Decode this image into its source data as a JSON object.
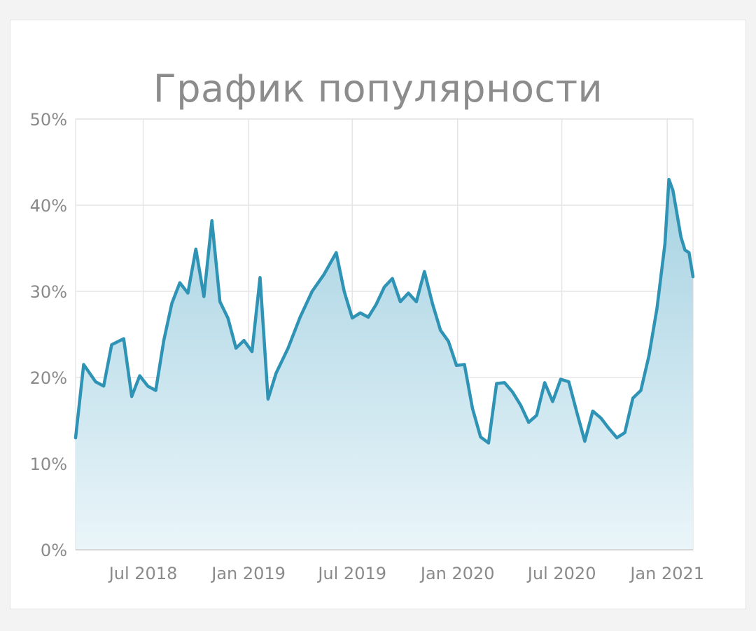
{
  "chart_data": {
    "type": "area",
    "title": "График популярности",
    "xlabel": "",
    "ylabel": "",
    "ylim": [
      0,
      50
    ],
    "xlim": [
      "2018-03-05",
      "2021-02-15"
    ],
    "x_ticks": [
      "Jul 2018",
      "Jan 2019",
      "Jul 2019",
      "Jan 2020",
      "Jul 2020",
      "Jan 2021"
    ],
    "y_ticks": [
      "0%",
      "10%",
      "20%",
      "30%",
      "40%",
      "50%"
    ],
    "grid": true,
    "legend": "none",
    "colors": {
      "line": "#2e93b4",
      "fill_top": "#a6d2e2",
      "fill_bottom": "#eaf5f9",
      "grid": "#e5e5e5",
      "axis": "#d6d6d6"
    },
    "series": [
      {
        "x": [
          "2018-03-05",
          "2018-03-19",
          "2018-04-09",
          "2018-04-23",
          "2018-05-07",
          "2018-05-28",
          "2018-06-11",
          "2018-06-25",
          "2018-07-09",
          "2018-07-23",
          "2018-08-06",
          "2018-08-20",
          "2018-09-03",
          "2018-09-17",
          "2018-10-01",
          "2018-10-15",
          "2018-10-29",
          "2018-11-12",
          "2018-11-26",
          "2018-12-10",
          "2018-12-24",
          "2019-01-07",
          "2019-01-21",
          "2019-02-04",
          "2019-02-18",
          "2019-03-11",
          "2019-04-01",
          "2019-04-22",
          "2019-05-13",
          "2019-06-03",
          "2019-06-17",
          "2019-07-01",
          "2019-07-15",
          "2019-07-29",
          "2019-08-12",
          "2019-08-26",
          "2019-09-09",
          "2019-09-23",
          "2019-10-07",
          "2019-10-21",
          "2019-11-04",
          "2019-11-18",
          "2019-12-02",
          "2019-12-16",
          "2019-12-30",
          "2020-01-13",
          "2020-01-27",
          "2020-02-10",
          "2020-02-24",
          "2020-03-09",
          "2020-03-23",
          "2020-04-06",
          "2020-04-20",
          "2020-05-04",
          "2020-05-18",
          "2020-06-01",
          "2020-06-15",
          "2020-06-29",
          "2020-07-13",
          "2020-07-27",
          "2020-08-10",
          "2020-08-24",
          "2020-09-07",
          "2020-09-21",
          "2020-10-05",
          "2020-10-19",
          "2020-11-02",
          "2020-11-16",
          "2020-11-30",
          "2020-12-14",
          "2020-12-28",
          "2021-01-04",
          "2021-01-11",
          "2021-01-25",
          "2021-02-01",
          "2021-02-08",
          "2021-02-15"
        ],
        "values": [
          13,
          21.5,
          19.5,
          19,
          23.8,
          24.5,
          17.8,
          20.2,
          19,
          18.5,
          24.3,
          28.6,
          31,
          29.8,
          34.9,
          29.4,
          38.2,
          28.8,
          26.9,
          23.4,
          24.3,
          23,
          31.6,
          17.5,
          20.5,
          23.4,
          27,
          30,
          32,
          34.5,
          30,
          26.9,
          27.5,
          27,
          28.5,
          30.5,
          31.5,
          28.8,
          29.8,
          28.8,
          32.3,
          28.6,
          25.5,
          24.2,
          21.4,
          21.5,
          16.4,
          13.1,
          12.4,
          19.3,
          19.4,
          18.3,
          16.8,
          14.8,
          15.6,
          19.4,
          17.2,
          19.8,
          19.5,
          16,
          12.6,
          16.1,
          15.3,
          14.1,
          13,
          13.6,
          17.6,
          18.5,
          22.5,
          28,
          35.5,
          43,
          41.7,
          36.3,
          34.8,
          34.5,
          31.7
        ]
      }
    ]
  }
}
